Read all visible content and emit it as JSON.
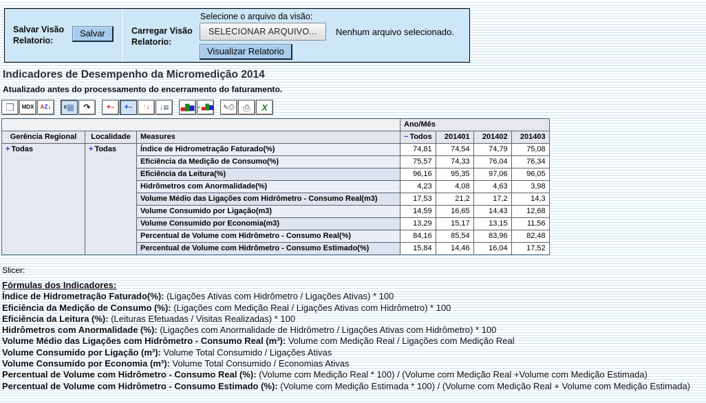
{
  "save_panel": {
    "save_label": "Salvar Visão Relatorio:",
    "save_button": "Salvar",
    "load_label": "Carregar Visão Relatorio:",
    "file_prompt": "Selecione o arquivo da visão:",
    "file_button": "SELECIONAR ARQUIVO...",
    "file_status": "Nenhum arquivo selecionado.",
    "view_button": "Visualizar Relatorio"
  },
  "page": {
    "title": "Indicadores de Desempenho da Micromedição 2014",
    "subtitle": "Atualizado antes do processamento do encerramento do faturamento.",
    "slicer_label": "Slicer:"
  },
  "toolbar": {
    "buttons": [
      {
        "name": "cube-navigator",
        "parts": [
          {
            "t": "❒",
            "c": "#7a7ab0",
            "s": 14
          }
        ]
      },
      {
        "name": "mdx",
        "parts": [
          {
            "t": "MDX",
            "c": "#16161c",
            "s": 8,
            "b": 1
          }
        ]
      },
      {
        "name": "sort",
        "gap": true,
        "parts": [
          {
            "t": "A",
            "c": "#cc2222",
            "s": 8,
            "b": 1
          },
          {
            "t": "Z",
            "c": "#2222cc",
            "s": 8,
            "b": 1
          },
          {
            "t": "↓",
            "c": "#111111",
            "s": 10
          }
        ]
      },
      {
        "name": "show-parents",
        "pressed": true,
        "parts": [
          {
            "t": "0",
            "c": "#111111",
            "s": 7,
            "b": 1
          },
          {
            "t": "▦",
            "c": "#5b7fb4",
            "s": 12
          }
        ]
      },
      {
        "name": "swap-axes",
        "gap": true,
        "parts": [
          {
            "t": "↷",
            "c": "#111111",
            "s": 12,
            "b": 1
          }
        ]
      },
      {
        "name": "drill-member",
        "parts": [
          {
            "t": "+",
            "c": "#cc2222",
            "s": 11,
            "b": 1
          },
          {
            "t": "−",
            "c": "#cc2222",
            "s": 9,
            "b": 1
          }
        ]
      },
      {
        "name": "drill-position",
        "pressed": true,
        "parts": [
          {
            "t": "+",
            "c": "#2233cc",
            "s": 11,
            "b": 1
          },
          {
            "t": "−",
            "c": "#2233cc",
            "s": 9,
            "b": 1
          }
        ]
      },
      {
        "name": "drill-replace",
        "parts": [
          {
            "t": "↑",
            "c": "#dd8855",
            "s": 10,
            "b": 1
          },
          {
            "t": "↓",
            "c": "#cc2222",
            "s": 10,
            "b": 1
          }
        ]
      },
      {
        "name": "drill-through",
        "gap": true,
        "parts": [
          {
            "t": "↓",
            "c": "#1a8c1a",
            "s": 11,
            "b": 1
          },
          {
            "t": "▦",
            "c": "#778899",
            "s": 9
          }
        ]
      },
      {
        "name": "chart",
        "parts": [
          {
            "t": "▄",
            "c": "#cc2222",
            "s": 9
          },
          {
            "t": "█",
            "c": "#1a8c1a",
            "s": 9
          },
          {
            "t": "▆",
            "c": "#2222cc",
            "s": 9
          }
        ]
      },
      {
        "name": "chart-config",
        "gap": true,
        "parts": [
          {
            "t": "✓",
            "c": "#111111",
            "s": 7,
            "b": 1
          },
          {
            "t": "▄",
            "c": "#cc2222",
            "s": 8
          },
          {
            "t": "█",
            "c": "#1a8c1a",
            "s": 8
          },
          {
            "t": "▆",
            "c": "#2222cc",
            "s": 8
          }
        ]
      },
      {
        "name": "print-config",
        "parts": [
          {
            "t": "✎",
            "c": "#333344",
            "s": 9
          },
          {
            "t": "⎙",
            "c": "#555566",
            "s": 11
          }
        ]
      },
      {
        "name": "print",
        "parts": [
          {
            "t": "⎙",
            "c": "#555566",
            "s": 13
          }
        ]
      },
      {
        "name": "excel-export",
        "parts": [
          {
            "t": "X",
            "c": "#1e7e34",
            "s": 13,
            "b": 1,
            "i": 1
          }
        ]
      }
    ]
  },
  "pivot": {
    "axis_header": "Ano/Mês",
    "row_axis_headers": [
      "Gerência Regional",
      "Localidade",
      "Measures"
    ],
    "collapse_icon": "−",
    "expand_icon": "+",
    "col_total_label": "Todos",
    "columns": [
      "201401",
      "201402",
      "201403"
    ],
    "row_totals": [
      "Todas",
      "Todas"
    ],
    "rows": [
      {
        "measure": "Índice de Hidrometração Faturado(%)",
        "values": [
          "74,81",
          "74,54",
          "74,79",
          "75,08"
        ]
      },
      {
        "measure": "Eficiência da Medição de Consumo(%)",
        "values": [
          "75,57",
          "74,33",
          "76,04",
          "76,34"
        ]
      },
      {
        "measure": "Eficiência da Leitura(%)",
        "values": [
          "96,16",
          "95,35",
          "97,06",
          "96,05"
        ]
      },
      {
        "measure": "Hidrômetros com Anormalidade(%)",
        "values": [
          "4,23",
          "4,08",
          "4,63",
          "3,98"
        ]
      },
      {
        "measure": "Volume Médio das Ligações com Hidrômetro - Consumo Real(m3)",
        "values": [
          "17,53",
          "21,2",
          "17,2",
          "14,3"
        ]
      },
      {
        "measure": "Volume Consumido por Ligação(m3)",
        "values": [
          "14,59",
          "16,65",
          "14,43",
          "12,68"
        ]
      },
      {
        "measure": "Volume Consumido por Economia(m3)",
        "values": [
          "13,29",
          "15,17",
          "13,15",
          "11,56"
        ]
      },
      {
        "measure": "Percentual de Volume com Hidrômetro - Consumo Real(%)",
        "values": [
          "84,16",
          "85,54",
          "83,96",
          "82,48"
        ]
      },
      {
        "measure": "Percentual de Volume com Hidrômetro - Consumo Estimado(%)",
        "values": [
          "15,84",
          "14,46",
          "16,04",
          "17,52"
        ]
      }
    ]
  },
  "formulas": {
    "heading": "Fórmulas dos Indicadores:",
    "items": [
      {
        "label": "Índice de Hidrometração Faturado(%):",
        "formula": "(Ligações Ativas com Hidrômetro / Ligações Ativas) * 100"
      },
      {
        "label": "Eficiência da Medição de Consumo (%):",
        "formula": "(Ligações com Medição Real / Ligações Ativas com Hidrômetro) * 100"
      },
      {
        "label": "Eficiência da Leitura (%):",
        "formula": "(Leituras Efetuadas / Visitas Realizadas) * 100"
      },
      {
        "label": "Hidrômetros com Anormalidade (%):",
        "formula": "(Ligações com Anormalidade de Hidrômetro / Ligações Ativas com Hidrômetro) * 100"
      },
      {
        "label": "Volume Médio das Ligações com Hidrômetro - Consumo Real (m³):",
        "formula": "Volume com Medição Real / Ligações com Medição Real"
      },
      {
        "label": "Volume Consumido por Ligação (m³):",
        "formula": "Volume Total Consumido / Ligações Ativas"
      },
      {
        "label": "Volume Consumido por Economia (m³):",
        "formula": "Volume Total Consumido / Economias Ativas"
      },
      {
        "label": "Percentual de Volume com Hidrômetro - Consumo Real (%):",
        "formula": "(Volume com Medição Real * 100) / (Volume com Medição Real +Volume com Medição Estimada)"
      },
      {
        "label": "Percentual de Volume com Hidrômetro - Consumo Estimado (%):",
        "formula": "(Volume com Medição Estimada * 100) / (Volume com Medição Real + Volume com Medição Estimada)"
      }
    ]
  },
  "colors": {
    "panel_bg": "#cde6f8",
    "button_blue": "#a9cbec",
    "stripe_line": "#c9e1f2",
    "header_cell": "#e6e7eb",
    "measure_cell": "#eaeef7",
    "measure_cell_alt": "#dde3ef",
    "drill_icon_blue": "#3333cc"
  }
}
